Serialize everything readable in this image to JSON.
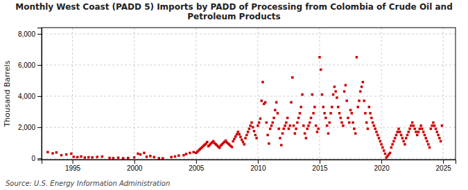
{
  "chart_data": {
    "type": "scatter",
    "title": "Monthly West Coast (PADD 5) Imports by PADD of Processing from Colombia of Crude Oil and\nPetroleum Products",
    "ylabel": "Thousand Barrels",
    "source": "Source: U.S. Energy Information Administration",
    "color": "#cc0000",
    "marker": "square",
    "grid": true,
    "xlim": [
      1992.5,
      2026.0
    ],
    "ylim": [
      -80,
      8400
    ],
    "xticks": [
      1995,
      2000,
      2005,
      2010,
      2015,
      2020,
      2025
    ],
    "yticks": [
      0,
      {
        "value": 2000,
        "label": "2,000"
      },
      {
        "value": 4000,
        "label": "4,000"
      },
      {
        "value": 6000,
        "label": "6,000"
      },
      {
        "value": 8000,
        "label": "8,000"
      }
    ],
    "x": [
      1993.0,
      1993.4,
      1993.7,
      1994.1,
      1994.5,
      1994.9,
      1995.1,
      1995.4,
      1995.7,
      1996.0,
      1996.3,
      1996.6,
      1997.0,
      1997.4,
      1998.0,
      1998.3,
      1998.7,
      1999.1,
      1999.5,
      2000.0,
      2000.3,
      2000.5,
      2000.8,
      2001.0,
      2001.3,
      2001.6,
      2002.0,
      2002.3,
      2003.0,
      2003.3,
      2003.6,
      2004.0,
      2004.2,
      2004.5,
      2004.8,
      2005.0,
      2005.1,
      2005.2,
      2005.3,
      2005.4,
      2005.5,
      2005.6,
      2005.7,
      2005.8,
      2005.9,
      2006.0,
      2006.1,
      2006.2,
      2006.3,
      2006.4,
      2006.5,
      2006.6,
      2006.7,
      2006.8,
      2006.9,
      2007.0,
      2007.1,
      2007.2,
      2007.3,
      2007.4,
      2007.5,
      2007.6,
      2007.7,
      2007.8,
      2007.9,
      2008.0,
      2008.1,
      2008.2,
      2008.3,
      2008.4,
      2008.5,
      2008.6,
      2008.7,
      2008.8,
      2008.9,
      2009.0,
      2009.1,
      2009.2,
      2009.3,
      2009.4,
      2009.5,
      2009.6,
      2009.7,
      2009.8,
      2009.9,
      2010.0,
      2010.1,
      2010.2,
      2010.3,
      2010.4,
      2010.5,
      2010.6,
      2010.7,
      2010.8,
      2010.9,
      2011.0,
      2011.1,
      2011.2,
      2011.3,
      2011.4,
      2011.5,
      2011.6,
      2011.7,
      2011.8,
      2011.9,
      2012.0,
      2012.1,
      2012.2,
      2012.3,
      2012.4,
      2012.5,
      2012.6,
      2012.7,
      2012.8,
      2012.9,
      2013.0,
      2013.1,
      2013.2,
      2013.3,
      2013.4,
      2013.5,
      2013.6,
      2013.7,
      2013.8,
      2013.9,
      2014.0,
      2014.1,
      2014.2,
      2014.3,
      2014.4,
      2014.5,
      2014.6,
      2014.7,
      2014.8,
      2014.9,
      2015.0,
      2015.1,
      2015.2,
      2015.3,
      2015.4,
      2015.5,
      2015.6,
      2015.7,
      2015.8,
      2015.9,
      2016.0,
      2016.1,
      2016.2,
      2016.3,
      2016.4,
      2016.5,
      2016.6,
      2016.7,
      2016.8,
      2016.9,
      2017.0,
      2017.1,
      2017.2,
      2017.3,
      2017.4,
      2017.5,
      2017.6,
      2017.7,
      2017.8,
      2017.9,
      2018.0,
      2018.1,
      2018.2,
      2018.3,
      2018.4,
      2018.5,
      2018.6,
      2018.7,
      2018.8,
      2018.9,
      2019.0,
      2019.1,
      2019.2,
      2019.3,
      2019.4,
      2019.5,
      2019.6,
      2019.7,
      2019.8,
      2019.9,
      2020.0,
      2020.1,
      2020.2,
      2020.3,
      2020.4,
      2020.5,
      2020.6,
      2020.7,
      2020.8,
      2020.9,
      2021.0,
      2021.1,
      2021.2,
      2021.3,
      2021.4,
      2021.5,
      2021.6,
      2021.7,
      2021.8,
      2021.9,
      2022.0,
      2022.1,
      2022.2,
      2022.3,
      2022.4,
      2022.5,
      2022.6,
      2022.7,
      2022.8,
      2022.9,
      2023.0,
      2023.1,
      2023.2,
      2023.3,
      2023.4,
      2023.5,
      2023.6,
      2023.7,
      2023.8,
      2023.9,
      2024.0,
      2024.1,
      2024.2,
      2024.3,
      2024.4,
      2024.5,
      2024.6,
      2024.7,
      2024.8,
      2024.9
    ],
    "values": [
      400,
      320,
      380,
      200,
      250,
      300,
      100,
      80,
      120,
      50,
      70,
      60,
      90,
      110,
      30,
      20,
      40,
      10,
      25,
      60,
      300,
      250,
      350,
      100,
      150,
      80,
      10,
      5,
      80,
      120,
      180,
      200,
      280,
      350,
      400,
      350,
      420,
      500,
      580,
      650,
      720,
      800,
      870,
      940,
      1050,
      780,
      860,
      950,
      1020,
      1100,
      980,
      900,
      830,
      750,
      680,
      820,
      900,
      980,
      1060,
      1140,
      1020,
      950,
      880,
      800,
      730,
      1100,
      1250,
      1400,
      1550,
      1700,
      1550,
      1380,
      1200,
      1050,
      900,
      1300,
      1500,
      1700,
      1900,
      2100,
      2300,
      2000,
      1750,
      1500,
      1300,
      2100,
      2300,
      2550,
      3700,
      4900,
      3500,
      3600,
      2300,
      1500,
      950,
      1900,
      2100,
      2300,
      2600,
      3100,
      3600,
      2900,
      1900,
      1300,
      850,
      1600,
      1900,
      2100,
      2300,
      2600,
      1900,
      2100,
      3600,
      5200,
      2100,
      1600,
      1900,
      2300,
      2600,
      2900,
      3300,
      4100,
      2100,
      1600,
      1300,
      1900,
      2100,
      2300,
      2600,
      4100,
      2900,
      3300,
      2100,
      1700,
      1900,
      6500,
      5700,
      4100,
      3300,
      2900,
      2600,
      2100,
      1600,
      2300,
      2900,
      3300,
      4100,
      4600,
      4300,
      3900,
      3300,
      2900,
      2600,
      2300,
      2100,
      4300,
      4700,
      3700,
      2600,
      2300,
      3100,
      2900,
      2300,
      1900,
      1600,
      6500,
      3300,
      3700,
      4300,
      4600,
      4900,
      3700,
      2900,
      2300,
      1900,
      3300,
      2900,
      2600,
      2300,
      2100,
      1900,
      1700,
      1500,
      1300,
      1100,
      900,
      700,
      500,
      300,
      50,
      150,
      250,
      350,
      700,
      900,
      1100,
      1300,
      1500,
      1700,
      1900,
      1700,
      1500,
      1300,
      1100,
      900,
      1300,
      1500,
      1700,
      1900,
      2100,
      2300,
      2100,
      1900,
      1700,
      1500,
      1700,
      1900,
      2100,
      1900,
      1700,
      1500,
      1300,
      1100,
      900,
      700,
      1900,
      2100,
      2300,
      2100,
      1900,
      1700,
      1500,
      1300,
      1100,
      2100
    ]
  }
}
